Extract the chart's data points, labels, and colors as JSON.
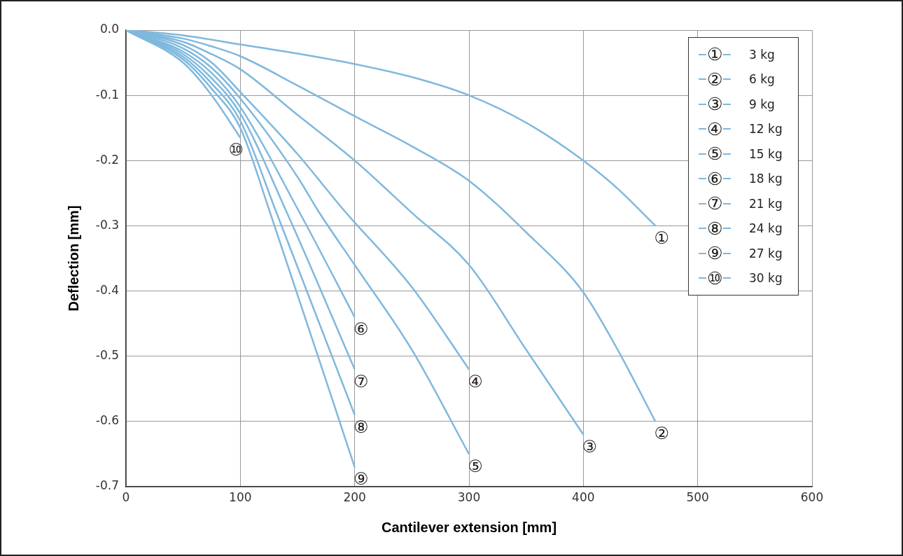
{
  "chart_data": {
    "type": "line",
    "xlabel": "Cantilever extension [mm]",
    "ylabel": "Deflection [mm]",
    "xlim": [
      0,
      600
    ],
    "xticks": [
      0,
      100,
      200,
      300,
      400,
      500,
      600
    ],
    "ylim": [
      -0.7,
      0
    ],
    "yticks": [
      {
        "value": 0,
        "label": "0.0"
      },
      {
        "value": -0.1,
        "label": "-0.1"
      },
      {
        "value": -0.2,
        "label": "-0.2"
      },
      {
        "value": -0.3,
        "label": "-0.3"
      },
      {
        "value": -0.4,
        "label": "-0.4"
      },
      {
        "value": -0.5,
        "label": "-0.5"
      },
      {
        "value": -0.6,
        "label": "-0.6"
      },
      {
        "value": -0.7,
        "label": "-0.7"
      }
    ],
    "grid": true,
    "legend": "top right",
    "marker": "none",
    "line_style": "solid",
    "series": [
      {
        "name": "3 kg",
        "color": "#7fb8dd",
        "x": [
          0,
          50,
          100,
          150,
          200,
          250,
          300,
          350,
          400,
          430,
          463
        ],
        "values": [
          0,
          -0.008,
          -0.022,
          -0.036,
          -0.052,
          -0.072,
          -0.1,
          -0.142,
          -0.2,
          -0.243,
          -0.3
        ]
      },
      {
        "name": "6 kg",
        "color": "#7fb8dd",
        "x": [
          0,
          50,
          75,
          100,
          150,
          200,
          250,
          300,
          350,
          400,
          430,
          463
        ],
        "values": [
          0,
          -0.013,
          -0.025,
          -0.04,
          -0.085,
          -0.132,
          -0.178,
          -0.231,
          -0.31,
          -0.402,
          -0.49,
          -0.6
        ]
      },
      {
        "name": "9 kg",
        "color": "#7fb8dd",
        "x": [
          0,
          50,
          75,
          100,
          150,
          200,
          250,
          300,
          350,
          400
        ],
        "values": [
          0,
          -0.018,
          -0.037,
          -0.06,
          -0.13,
          -0.2,
          -0.28,
          -0.36,
          -0.49,
          -0.62
        ]
      },
      {
        "name": "12 kg",
        "color": "#7fb8dd",
        "x": [
          0,
          50,
          75,
          100,
          150,
          191,
          250,
          300
        ],
        "values": [
          0,
          -0.023,
          -0.05,
          -0.095,
          -0.19,
          -0.277,
          -0.394,
          -0.52
        ]
      },
      {
        "name": "15 kg",
        "color": "#7fb8dd",
        "x": [
          0,
          50,
          75,
          100,
          150,
          168,
          200,
          250,
          300
        ],
        "values": [
          0,
          -0.028,
          -0.058,
          -0.105,
          -0.225,
          -0.277,
          -0.36,
          -0.49,
          -0.65
        ]
      },
      {
        "name": "18 kg",
        "color": "#7fb8dd",
        "x": [
          0,
          50,
          75,
          100,
          151,
          200
        ],
        "values": [
          0,
          -0.033,
          -0.066,
          -0.118,
          -0.277,
          -0.44
        ]
      },
      {
        "name": "21 kg",
        "color": "#7fb8dd",
        "x": [
          0,
          50,
          75,
          100,
          140,
          200
        ],
        "values": [
          0,
          -0.037,
          -0.074,
          -0.128,
          -0.277,
          -0.52
        ]
      },
      {
        "name": "24 kg",
        "color": "#7fb8dd",
        "x": [
          0,
          50,
          75,
          100,
          131,
          200
        ],
        "values": [
          0,
          -0.041,
          -0.082,
          -0.139,
          -0.277,
          -0.59
        ]
      },
      {
        "name": "27 kg",
        "color": "#7fb8dd",
        "x": [
          0,
          50,
          75,
          100,
          125.5,
          200
        ],
        "values": [
          0,
          -0.045,
          -0.09,
          -0.15,
          -0.277,
          -0.67
        ]
      },
      {
        "name": "30 kg",
        "color": "#7fb8dd",
        "x": [
          0,
          50,
          75,
          100
        ],
        "values": [
          0,
          -0.05,
          -0.1,
          -0.165
        ]
      }
    ],
    "annotations": [
      {
        "text": "①",
        "x": 463,
        "y": -0.3
      },
      {
        "text": "②",
        "x": 463,
        "y": -0.6
      },
      {
        "text": "③",
        "x": 400,
        "y": -0.62
      },
      {
        "text": "④",
        "x": 300,
        "y": -0.52
      },
      {
        "text": "⑤",
        "x": 300,
        "y": -0.65
      },
      {
        "text": "⑥",
        "x": 200,
        "y": -0.44
      },
      {
        "text": "⑦",
        "x": 200,
        "y": -0.52
      },
      {
        "text": "⑧",
        "x": 200,
        "y": -0.59
      },
      {
        "text": "⑨",
        "x": 200,
        "y": -0.67
      },
      {
        "text": "⑩",
        "x": 100,
        "y": -0.165
      }
    ]
  }
}
